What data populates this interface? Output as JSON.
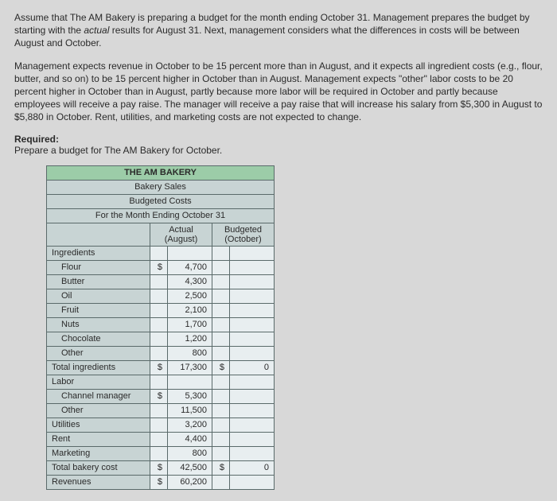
{
  "intro": {
    "p1a": "Assume that The AM Bakery is preparing a budget for the month ending October 31. Management prepares the budget by starting with the ",
    "p1b": "actual",
    "p1c": " results for August 31. Next, management considers what the differences in costs will be between August and October.",
    "p2": "Management expects revenue in October to be 15 percent more than in August, and it expects all ingredient costs (e.g., flour, butter, and so on) to be 15 percent higher in October than in August. Management expects \"other\" labor costs to be 20 percent higher in October than in August, partly because more labor will be required in October and partly because employees will receive a pay raise. The manager will receive a pay raise that will increase his salary from $5,300 in August to $5,880 in October. Rent, utilities, and marketing costs are not expected to change.",
    "required_label": "Required:",
    "required_text": "Prepare a budget for The AM Bakery for October."
  },
  "table": {
    "title": "THE AM BAKERY",
    "sub1": "Bakery Sales",
    "sub2": "Budgeted Costs",
    "sub3": "For the Month Ending October 31",
    "col_actual": "Actual (August)",
    "col_budget": "Budgeted (October)",
    "rows": {
      "ingredients": "Ingredients",
      "flour": "Flour",
      "flour_v": "4,700",
      "butter": "Butter",
      "butter_v": "4,300",
      "oil": "Oil",
      "oil_v": "2,500",
      "fruit": "Fruit",
      "fruit_v": "2,100",
      "nuts": "Nuts",
      "nuts_v": "1,700",
      "chocolate": "Chocolate",
      "chocolate_v": "1,200",
      "other_ing": "Other",
      "other_ing_v": "800",
      "total_ing": "Total ingredients",
      "total_ing_v": "17,300",
      "total_ing_b": "0",
      "labor": "Labor",
      "chmgr": "Channel manager",
      "chmgr_v": "5,300",
      "other_lab": "Other",
      "other_lab_v": "11,500",
      "util": "Utilities",
      "util_v": "3,200",
      "rent": "Rent",
      "rent_v": "4,400",
      "mkt": "Marketing",
      "mkt_v": "800",
      "total_bak": "Total bakery cost",
      "total_bak_v": "42,500",
      "total_bak_b": "0",
      "rev": "Revenues",
      "rev_v": "60,200"
    },
    "sym": "$"
  },
  "style": {
    "bg": "#d8d8d8",
    "table_bg": "#c8d4d4",
    "input_bg": "#e8eef0",
    "header_green": "#9ccca8",
    "border": "#5a6a6a"
  }
}
